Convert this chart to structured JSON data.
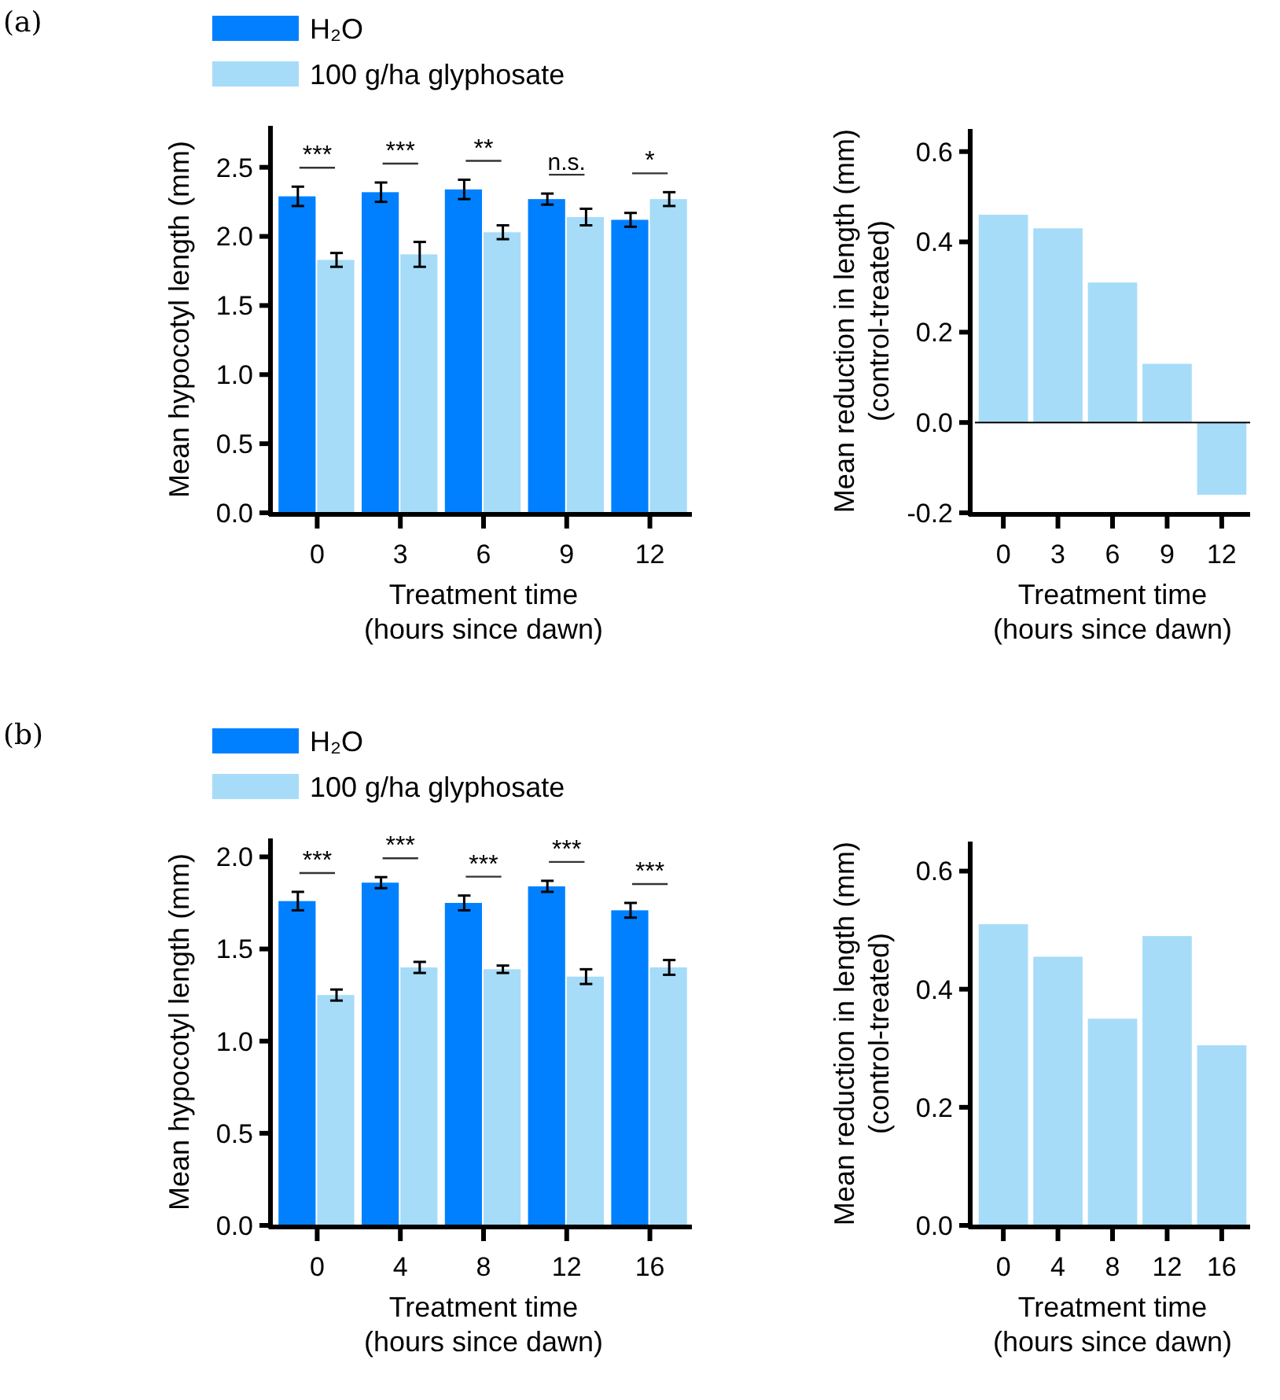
{
  "chart_data": [
    {
      "type": "bar",
      "annotations": [
        "(a)",
        "***",
        "***",
        "**",
        "n.s.",
        "*"
      ],
      "xlabel": "Treatment time\n(hours since dawn)",
      "ylabel": "Mean hypocotyl length (mm)",
      "categories": [
        "0",
        "3",
        "6",
        "9",
        "12"
      ],
      "series": [
        {
          "name": "H₂O",
          "color": "#0080ff",
          "values": [
            2.29,
            2.32,
            2.34,
            2.27,
            2.12
          ],
          "errors": [
            0.07,
            0.07,
            0.07,
            0.04,
            0.05
          ]
        },
        {
          "name": "100 g/ha glyphosate",
          "color": "#a6dcf8",
          "values": [
            1.83,
            1.87,
            2.03,
            2.14,
            2.27
          ],
          "errors": [
            0.05,
            0.09,
            0.05,
            0.06,
            0.05
          ]
        }
      ],
      "ylim": [
        0,
        2.8
      ],
      "yticks": [
        {
          "value": 0,
          "label": "0.0"
        },
        0.5,
        {
          "value": 1,
          "label": "1.0"
        },
        1.5,
        {
          "value": 2,
          "label": "2.0"
        },
        2.5
      ],
      "legend": "top left"
    },
    {
      "type": "bar",
      "xlabel": "Treatment time\n(hours since dawn)",
      "ylabel": "Mean reduction in length (mm)\n(control-treated)",
      "categories": [
        "0",
        "3",
        "6",
        "9",
        "12"
      ],
      "series": [
        {
          "color": "#a6dcf8",
          "values": [
            0.46,
            0.43,
            0.31,
            0.13,
            -0.16
          ]
        }
      ],
      "ylim": [
        -0.2,
        0.65
      ],
      "yticks": [
        -0.2,
        {
          "value": 0,
          "label": "0.0"
        },
        0.2,
        0.4,
        0.6
      ],
      "ref_lines": [
        {
          "axis": "y",
          "value": 0
        }
      ]
    },
    {
      "type": "bar",
      "annotations": [
        "(b)",
        "***",
        "***",
        "***",
        "***",
        "***"
      ],
      "xlabel": "Treatment time\n(hours since dawn)",
      "ylabel": "Mean hypocotyl length (mm)",
      "categories": [
        "0",
        "4",
        "8",
        "12",
        "16"
      ],
      "series": [
        {
          "name": "H₂O",
          "color": "#0080ff",
          "values": [
            1.76,
            1.86,
            1.75,
            1.84,
            1.71
          ],
          "errors": [
            0.05,
            0.03,
            0.04,
            0.03,
            0.04
          ]
        },
        {
          "name": "100 g/ha glyphosate",
          "color": "#a6dcf8",
          "values": [
            1.25,
            1.4,
            1.39,
            1.35,
            1.4
          ],
          "errors": [
            0.03,
            0.03,
            0.02,
            0.04,
            0.04
          ]
        }
      ],
      "ylim": [
        0,
        2.1
      ],
      "yticks": [
        {
          "value": 0,
          "label": "0.0"
        },
        0.5,
        {
          "value": 1,
          "label": "1.0"
        },
        1.5,
        {
          "value": 2,
          "label": "2.0"
        }
      ],
      "legend": "top left"
    },
    {
      "type": "bar",
      "xlabel": "Treatment time\n(hours since dawn)",
      "ylabel": "Mean reduction in length (mm)\n(control-treated)",
      "categories": [
        "0",
        "4",
        "8",
        "12",
        "16"
      ],
      "series": [
        {
          "color": "#a6dcf8",
          "values": [
            0.51,
            0.455,
            0.35,
            0.49,
            0.305
          ]
        }
      ],
      "ylim": [
        0,
        0.65
      ],
      "yticks": [
        {
          "value": 0,
          "label": "0.0"
        },
        0.2,
        0.4,
        0.6
      ]
    }
  ]
}
